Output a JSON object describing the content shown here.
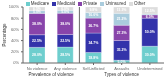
{
  "chart_data": {
    "type": "bar",
    "stacked": true,
    "categories": [
      "No violence",
      "Any violence",
      "Self-inflicted",
      "Assaults",
      "Undetermined"
    ],
    "series": [
      {
        "name": "Medicare",
        "color": "#6ecece",
        "values": [
          28.0,
          28.5,
          18.8,
          5.0,
          30.0
        ],
        "value_labels": [
          "28.0%",
          "28.5%",
          "18.8%",
          "5.0%",
          "30.0%"
        ]
      },
      {
        "name": "Medicaid",
        "color": "#3333aa",
        "values": [
          22.5,
          22.5,
          34.7,
          35.2,
          50.0
        ],
        "value_labels": [
          "22.5%",
          "22.5%",
          "34.7%",
          "35.2%",
          "50.0%"
        ]
      },
      {
        "name": "Private",
        "color": "#8844aa",
        "values": [
          38.0,
          38.0,
          26.7,
          27.3,
          6.0
        ],
        "value_labels": [
          "38.0%",
          "38.0%",
          "26.7%",
          "27.3%",
          "6.0%"
        ]
      },
      {
        "name": "Uninsured",
        "color": "#aaccdd",
        "values": [
          5.0,
          5.0,
          10.0,
          21.2,
          1.5
        ],
        "value_labels": [
          "5.0%",
          "5.0%",
          "10.0%",
          "21.2%",
          null
        ]
      },
      {
        "name": "Other",
        "color": "#dddddd",
        "values": [
          6.5,
          6.0,
          9.8,
          11.3,
          12.5
        ],
        "value_labels": [
          "6.5%",
          "6.0%",
          "9.8%",
          "11.3%",
          "12.5%"
        ]
      }
    ],
    "ylabel": "Percentage",
    "ylim": [
      0,
      100
    ],
    "yticks": [
      {
        "value": 0,
        "label": "0%"
      },
      {
        "value": 20,
        "label": "20%"
      },
      {
        "value": 40,
        "label": "40%"
      },
      {
        "value": 60,
        "label": "60%"
      },
      {
        "value": 80,
        "label": "80%"
      },
      {
        "value": 100,
        "label": "100%"
      }
    ],
    "data_labels": true,
    "legend": "top",
    "grid": false,
    "annotations": [
      {
        "text": "Prevalence of violence",
        "categories": [
          "No violence",
          "Any violence"
        ]
      },
      {
        "text": "Types of violence",
        "categories": [
          "Self-inflicted",
          "Assaults",
          "Undetermined"
        ]
      }
    ]
  }
}
